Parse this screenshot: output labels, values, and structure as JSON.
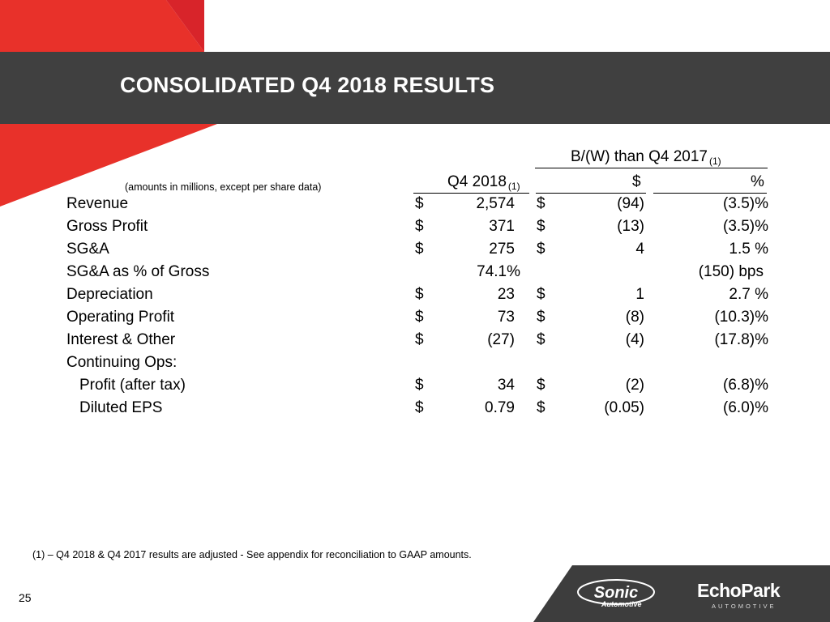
{
  "slide": {
    "title": "CONSOLIDATED Q4 2018 RESULTS",
    "page_number": "25",
    "footnote": "(1) – Q4 2018 & Q4 2017 results are adjusted - See appendix for reconciliation to GAAP amounts."
  },
  "table": {
    "group_header": "B/(W) than Q4 2017",
    "group_header_note": "(1)",
    "units_label": "(amounts in millions, except per share data)",
    "col_q4": "Q4 2018",
    "col_q4_note": "(1)",
    "col_dollar": "$",
    "col_pct": "%",
    "rows": [
      {
        "label": "Revenue",
        "d1": "$",
        "value": "2,574",
        "d2": "$",
        "change": "(94)",
        "pct": "(3.5)%"
      },
      {
        "label": "Gross Profit",
        "d1": "$",
        "value": "371",
        "d2": "$",
        "change": "(13)",
        "pct": "(3.5)%"
      },
      {
        "label": "SG&A",
        "d1": "$",
        "value": "275",
        "d2": "$",
        "change": "4",
        "pct": "1.5 %"
      },
      {
        "label": "SG&A as % of Gross",
        "d1": "",
        "value": "74.1%",
        "d2": "",
        "change": "",
        "pct": "(150) bps"
      },
      {
        "label": "Depreciation",
        "d1": "$",
        "value": "23",
        "d2": "$",
        "change": "1",
        "pct": "2.7 %"
      },
      {
        "label": "Operating Profit",
        "d1": "$",
        "value": "73",
        "d2": "$",
        "change": "(8)",
        "pct": "(10.3)%"
      },
      {
        "label": "Interest & Other",
        "d1": "$",
        "value": "(27)",
        "d2": "$",
        "change": "(4)",
        "pct": "(17.8)%"
      },
      {
        "label": "Continuing Ops:",
        "d1": "",
        "value": "",
        "d2": "",
        "change": "",
        "pct": ""
      },
      {
        "label": "Profit (after tax)",
        "d1": "$",
        "value": "34",
        "d2": "$",
        "change": "(2)",
        "pct": "(6.8)%"
      },
      {
        "label": "Diluted EPS",
        "d1": "$",
        "value": "0.79",
        "d2": "$",
        "change": "(0.05)",
        "pct": "(6.0)%"
      }
    ]
  },
  "logos": {
    "sonic_word": "Sonic",
    "sonic_sub": "Automotive",
    "echopark_word": "EchoPark",
    "echopark_sub": "AUTOMOTIVE"
  },
  "colors": {
    "header_band": "#404040",
    "accent_red": "#e8312a",
    "accent_dark_red": "#c0151f",
    "footer_band": "#3d3d3d"
  }
}
